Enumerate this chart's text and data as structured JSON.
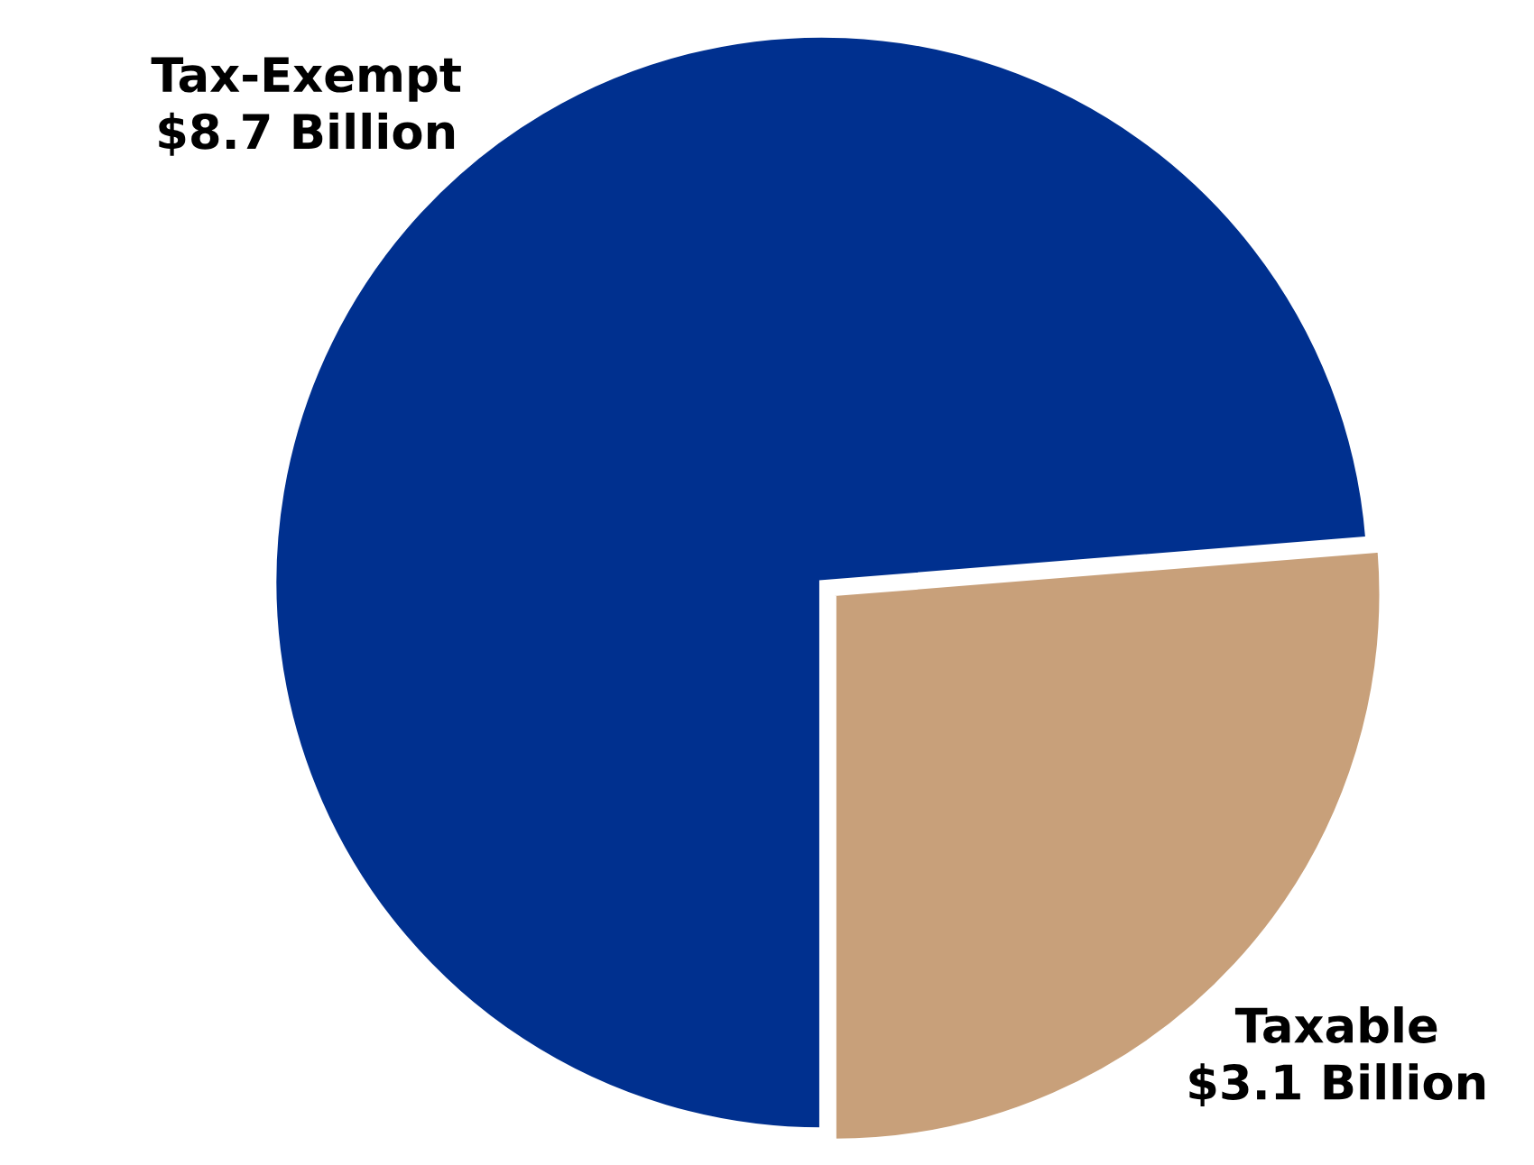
{
  "chart_data": {
    "type": "pie",
    "categories": [
      "Tax-Exempt",
      "Taxable"
    ],
    "values": [
      8.7,
      3.1
    ],
    "value_labels": [
      "$8.7 Billion",
      "$3.1 Billion"
    ],
    "colors": [
      "#00308f",
      "#c8a07a"
    ],
    "legend": false
  }
}
